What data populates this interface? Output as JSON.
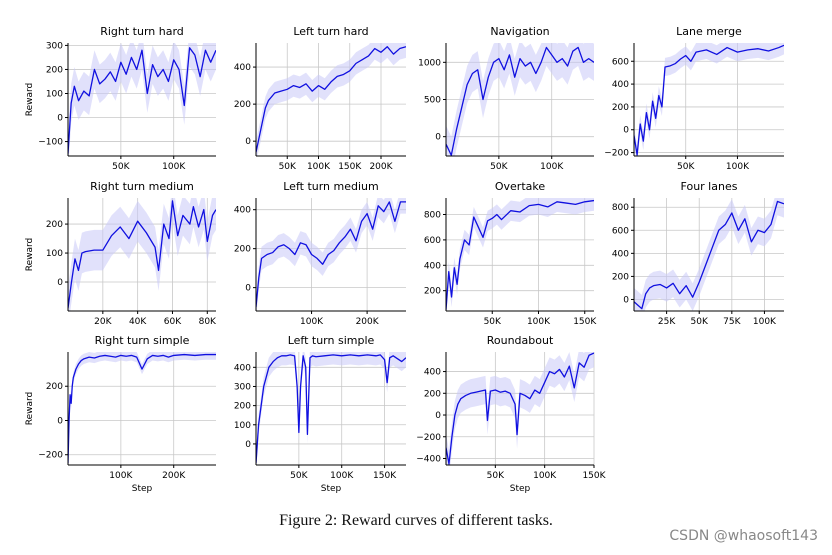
{
  "figure": {
    "caption": "Figure 2: Reward curves of different tasks.",
    "watermark": "CSDN @whaosoft143",
    "colors": {
      "line": "#1010e0",
      "band": "#c8c8f8",
      "grid": "#c8c8c8",
      "axis": "#000000"
    }
  },
  "chart_data": [
    {
      "type": "line",
      "title": "Right turn hard",
      "xlabel": "",
      "ylabel": "Reward",
      "xlim": [
        0,
        140000
      ],
      "ylim": [
        -160,
        310
      ],
      "xticks": [
        50000,
        100000
      ],
      "xticklabels": [
        "50K",
        "100K"
      ],
      "yticks": [
        -100,
        0,
        100,
        200,
        300
      ],
      "yticklabels": [
        "−100",
        "0",
        "100",
        "200",
        "300"
      ],
      "series": [
        {
          "name": "reward",
          "band": 80,
          "x": [
            0,
            3000,
            6000,
            10000,
            15000,
            20000,
            25000,
            30000,
            35000,
            40000,
            45000,
            50000,
            55000,
            60000,
            65000,
            70000,
            75000,
            80000,
            85000,
            90000,
            95000,
            100000,
            105000,
            110000,
            115000,
            120000,
            125000,
            130000,
            135000,
            140000
          ],
          "y": [
            -150,
            60,
            130,
            70,
            110,
            90,
            200,
            140,
            160,
            190,
            150,
            230,
            180,
            250,
            200,
            280,
            100,
            220,
            170,
            200,
            150,
            240,
            200,
            50,
            290,
            260,
            170,
            280,
            230,
            280
          ]
        }
      ]
    },
    {
      "type": "line",
      "title": "Left turn hard",
      "xlabel": "",
      "ylabel": "",
      "xlim": [
        0,
        240000
      ],
      "ylim": [
        -80,
        530
      ],
      "xticks": [
        50000,
        100000,
        150000,
        200000
      ],
      "xticklabels": [
        "50K",
        "100K",
        "150K",
        "200K"
      ],
      "yticks": [
        0,
        200,
        400
      ],
      "yticklabels": [
        "0",
        "200",
        "400"
      ],
      "series": [
        {
          "name": "reward",
          "band": 60,
          "x": [
            0,
            5000,
            10000,
            15000,
            20000,
            30000,
            40000,
            50000,
            60000,
            70000,
            80000,
            90000,
            100000,
            110000,
            120000,
            130000,
            140000,
            150000,
            160000,
            170000,
            180000,
            190000,
            200000,
            210000,
            220000,
            230000,
            240000
          ],
          "y": [
            -60,
            20,
            100,
            180,
            220,
            260,
            270,
            280,
            300,
            290,
            310,
            270,
            300,
            280,
            320,
            350,
            360,
            380,
            420,
            440,
            460,
            500,
            480,
            510,
            470,
            500,
            510
          ]
        }
      ]
    },
    {
      "type": "line",
      "title": "Navigation",
      "xlabel": "",
      "ylabel": "",
      "xlim": [
        0,
        140000
      ],
      "ylim": [
        -260,
        1260
      ],
      "xticks": [
        50000,
        100000
      ],
      "xticklabels": [
        "50K",
        "100K"
      ],
      "yticks": [
        0,
        500,
        1000
      ],
      "yticklabels": [
        "0",
        "500",
        "1000"
      ],
      "series": [
        {
          "name": "reward",
          "band": 250,
          "x": [
            0,
            5000,
            10000,
            15000,
            20000,
            25000,
            30000,
            35000,
            40000,
            45000,
            50000,
            55000,
            60000,
            65000,
            70000,
            75000,
            80000,
            85000,
            90000,
            95000,
            100000,
            105000,
            110000,
            115000,
            120000,
            125000,
            130000,
            135000,
            140000
          ],
          "y": [
            -100,
            -250,
            100,
            400,
            700,
            850,
            900,
            500,
            800,
            1000,
            1050,
            900,
            1100,
            800,
            1050,
            950,
            1000,
            850,
            1000,
            1200,
            1100,
            1000,
            1050,
            950,
            1150,
            1200,
            1000,
            1050,
            1000
          ]
        }
      ]
    },
    {
      "type": "line",
      "title": "Lane merge",
      "xlabel": "",
      "ylabel": "",
      "xlim": [
        0,
        145000
      ],
      "ylim": [
        -230,
        760
      ],
      "xticks": [
        50000,
        100000
      ],
      "xticklabels": [
        "50K",
        "100K"
      ],
      "yticks": [
        -200,
        0,
        200,
        400,
        600
      ],
      "yticklabels": [
        "−200",
        "0",
        "200",
        "400",
        "600"
      ],
      "series": [
        {
          "name": "reward",
          "band": 80,
          "x": [
            0,
            3000,
            6000,
            9000,
            12000,
            15000,
            18000,
            21000,
            24000,
            27000,
            30000,
            35000,
            40000,
            45000,
            50000,
            55000,
            60000,
            70000,
            80000,
            90000,
            100000,
            110000,
            120000,
            130000,
            140000,
            145000
          ],
          "y": [
            -50,
            -220,
            50,
            -100,
            150,
            0,
            250,
            100,
            300,
            200,
            550,
            560,
            580,
            620,
            650,
            600,
            680,
            700,
            660,
            720,
            680,
            700,
            710,
            690,
            720,
            740
          ]
        }
      ]
    },
    {
      "type": "line",
      "title": "Right turn medium",
      "xlabel": "",
      "ylabel": "Reward",
      "xlim": [
        0,
        85000
      ],
      "ylim": [
        -100,
        290
      ],
      "xticks": [
        20000,
        40000,
        60000,
        80000
      ],
      "xticklabels": [
        "20K",
        "40K",
        "60K",
        "80K"
      ],
      "yticks": [
        0,
        100,
        200
      ],
      "yticklabels": [
        "0",
        "100",
        "200"
      ],
      "series": [
        {
          "name": "reward",
          "band": 70,
          "x": [
            0,
            2000,
            4000,
            6000,
            8000,
            10000,
            15000,
            20000,
            25000,
            30000,
            35000,
            40000,
            45000,
            50000,
            52000,
            55000,
            58000,
            60000,
            63000,
            66000,
            70000,
            72000,
            75000,
            78000,
            80000,
            83000,
            85000
          ],
          "y": [
            -90,
            0,
            80,
            40,
            100,
            105,
            110,
            110,
            160,
            190,
            150,
            210,
            170,
            120,
            40,
            200,
            150,
            280,
            160,
            230,
            200,
            260,
            190,
            250,
            140,
            230,
            250
          ]
        }
      ]
    },
    {
      "type": "line",
      "title": "Left turn medium",
      "xlabel": "",
      "ylabel": "",
      "xlim": [
        0,
        270000
      ],
      "ylim": [
        -120,
        460
      ],
      "xticks": [
        100000,
        200000
      ],
      "xticklabels": [
        "100K",
        "200K"
      ],
      "yticks": [
        0,
        200,
        400
      ],
      "yticklabels": [
        "0",
        "200",
        "400"
      ],
      "series": [
        {
          "name": "reward",
          "band": 60,
          "x": [
            0,
            5000,
            10000,
            20000,
            30000,
            40000,
            50000,
            60000,
            70000,
            80000,
            90000,
            100000,
            110000,
            120000,
            130000,
            140000,
            150000,
            160000,
            170000,
            180000,
            190000,
            200000,
            210000,
            220000,
            230000,
            240000,
            250000,
            260000,
            270000
          ],
          "y": [
            -100,
            50,
            150,
            170,
            180,
            210,
            220,
            200,
            170,
            230,
            220,
            170,
            150,
            120,
            170,
            190,
            230,
            260,
            300,
            240,
            340,
            380,
            300,
            420,
            390,
            440,
            340,
            440,
            440
          ]
        }
      ]
    },
    {
      "type": "line",
      "title": "Overtake",
      "xlabel": "",
      "ylabel": "",
      "xlim": [
        0,
        160000
      ],
      "ylim": [
        40,
        930
      ],
      "xticks": [
        50000,
        100000,
        150000
      ],
      "xticklabels": [
        "50K",
        "100K",
        "150K"
      ],
      "yticks": [
        200,
        400,
        600,
        800
      ],
      "yticklabels": [
        "200",
        "400",
        "600",
        "800"
      ],
      "series": [
        {
          "name": "reward",
          "band": 80,
          "x": [
            0,
            3000,
            6000,
            9000,
            12000,
            15000,
            20000,
            25000,
            30000,
            35000,
            40000,
            45000,
            50000,
            55000,
            60000,
            70000,
            80000,
            90000,
            100000,
            110000,
            120000,
            130000,
            140000,
            150000,
            160000
          ],
          "y": [
            50,
            350,
            150,
            380,
            250,
            450,
            600,
            560,
            780,
            700,
            620,
            750,
            770,
            800,
            760,
            830,
            820,
            870,
            880,
            860,
            900,
            890,
            880,
            900,
            910
          ]
        }
      ]
    },
    {
      "type": "line",
      "title": "Four lanes",
      "xlabel": "",
      "ylabel": "",
      "xlim": [
        0,
        115000
      ],
      "ylim": [
        -100,
        880
      ],
      "xticks": [
        25000,
        50000,
        75000,
        100000
      ],
      "xticklabels": [
        "25K",
        "50K",
        "75K",
        "100K"
      ],
      "yticks": [
        0,
        200,
        400,
        600,
        800
      ],
      "yticklabels": [
        "0",
        "200",
        "400",
        "600",
        "800"
      ],
      "series": [
        {
          "name": "reward",
          "band": 120,
          "x": [
            0,
            3000,
            6000,
            9000,
            12000,
            15000,
            20000,
            25000,
            30000,
            35000,
            40000,
            45000,
            50000,
            55000,
            60000,
            65000,
            70000,
            75000,
            80000,
            85000,
            90000,
            95000,
            100000,
            105000,
            110000,
            115000
          ],
          "y": [
            -20,
            -50,
            -80,
            50,
            100,
            120,
            130,
            100,
            140,
            50,
            120,
            20,
            150,
            300,
            450,
            600,
            650,
            750,
            600,
            700,
            500,
            600,
            580,
            650,
            850,
            830
          ]
        }
      ]
    },
    {
      "type": "line",
      "title": "Right turn simple",
      "xlabel": "Step",
      "ylabel": "Reward",
      "xlim": [
        0,
        280000
      ],
      "ylim": [
        -260,
        400
      ],
      "xticks": [
        100000,
        200000
      ],
      "xticklabels": [
        "100K",
        "200K"
      ],
      "yticks": [
        -200,
        0,
        200
      ],
      "yticklabels": [
        "−200",
        "0",
        "200"
      ],
      "series": [
        {
          "name": "reward",
          "band": 30,
          "x": [
            0,
            2000,
            4000,
            6000,
            8000,
            10000,
            15000,
            20000,
            25000,
            30000,
            40000,
            50000,
            60000,
            70000,
            80000,
            90000,
            100000,
            110000,
            120000,
            130000,
            140000,
            150000,
            160000,
            170000,
            180000,
            190000,
            200000,
            220000,
            240000,
            260000,
            280000
          ],
          "y": [
            -250,
            0,
            150,
            100,
            200,
            250,
            300,
            330,
            350,
            360,
            370,
            365,
            375,
            380,
            375,
            370,
            380,
            375,
            380,
            370,
            300,
            360,
            380,
            375,
            380,
            370,
            380,
            385,
            380,
            385,
            385
          ]
        }
      ]
    },
    {
      "type": "line",
      "title": "Left turn simple",
      "xlabel": "Step",
      "ylabel": "",
      "xlim": [
        0,
        175000
      ],
      "ylim": [
        -110,
        480
      ],
      "xticks": [
        50000,
        100000,
        150000
      ],
      "xticklabels": [
        "50K",
        "100K",
        "150K"
      ],
      "yticks": [
        0,
        100,
        200,
        300,
        400
      ],
      "yticklabels": [
        "0",
        "100",
        "200",
        "300",
        "400"
      ],
      "series": [
        {
          "name": "reward",
          "band": 50,
          "x": [
            0,
            3000,
            6000,
            9000,
            12000,
            15000,
            20000,
            25000,
            30000,
            35000,
            40000,
            45000,
            48000,
            50000,
            52000,
            55000,
            58000,
            60000,
            63000,
            66000,
            70000,
            80000,
            90000,
            100000,
            110000,
            120000,
            130000,
            140000,
            145000,
            150000,
            153000,
            156000,
            160000,
            170000,
            175000
          ],
          "y": [
            -100,
            100,
            200,
            300,
            350,
            400,
            430,
            450,
            460,
            460,
            465,
            460,
            300,
            60,
            300,
            460,
            400,
            50,
            450,
            460,
            455,
            460,
            465,
            460,
            465,
            460,
            465,
            460,
            465,
            440,
            320,
            450,
            460,
            430,
            450
          ]
        }
      ]
    },
    {
      "type": "line",
      "title": "Roundabout",
      "xlabel": "Step",
      "ylabel": "",
      "xlim": [
        0,
        150000
      ],
      "ylim": [
        -460,
        580
      ],
      "xticks": [
        50000,
        100000,
        150000
      ],
      "xticklabels": [
        "50K",
        "100K",
        "150K"
      ],
      "yticks": [
        -400,
        -200,
        0,
        200,
        400
      ],
      "yticklabels": [
        "−400",
        "−200",
        "0",
        "200",
        "400"
      ],
      "series": [
        {
          "name": "reward",
          "band": 130,
          "x": [
            0,
            3000,
            6000,
            9000,
            12000,
            15000,
            20000,
            25000,
            30000,
            35000,
            40000,
            42000,
            45000,
            50000,
            55000,
            60000,
            65000,
            70000,
            72000,
            75000,
            80000,
            85000,
            90000,
            95000,
            100000,
            105000,
            110000,
            115000,
            120000,
            125000,
            130000,
            135000,
            140000,
            145000,
            150000
          ],
          "y": [
            -300,
            -450,
            -200,
            0,
            100,
            150,
            180,
            200,
            210,
            220,
            230,
            -50,
            220,
            230,
            210,
            220,
            200,
            100,
            -180,
            200,
            180,
            150,
            230,
            200,
            300,
            400,
            380,
            420,
            350,
            450,
            250,
            480,
            440,
            550,
            570
          ]
        }
      ]
    }
  ]
}
